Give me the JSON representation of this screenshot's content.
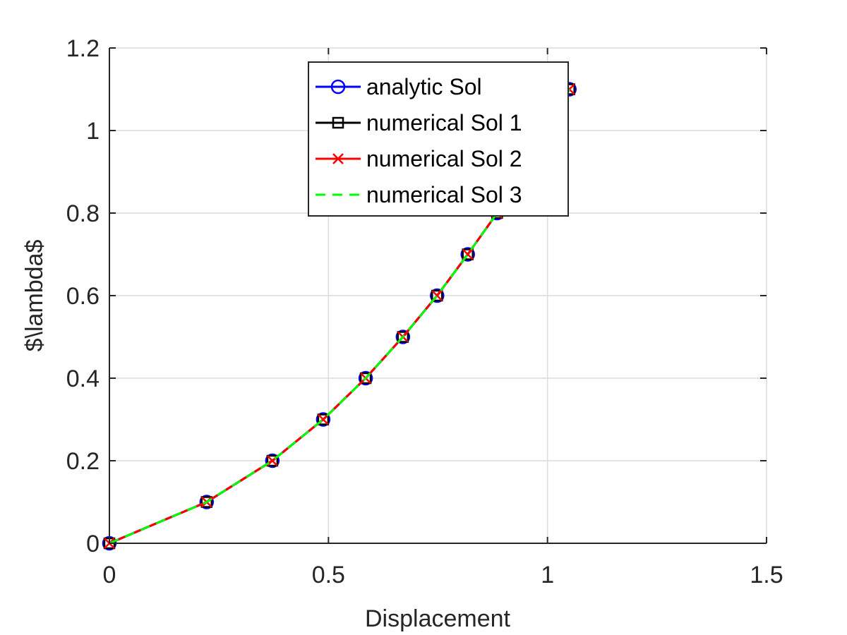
{
  "chart_data": {
    "type": "line",
    "xlabel": "Displacement",
    "ylabel": "$\\lambda$",
    "xlim": [
      0,
      1.5
    ],
    "ylim": [
      0,
      1.2
    ],
    "xticks": [
      "0",
      "0.5",
      "1",
      "1.5"
    ],
    "yticks": [
      "0",
      "0.2",
      "0.4",
      "0.6",
      "0.8",
      "1",
      "1.2"
    ],
    "grid": true,
    "legend_position": "top-center",
    "series": [
      {
        "name": "analytic Sol",
        "color": "#0000ff",
        "marker": "circle",
        "line_style": "solid",
        "x": [
          0,
          0.222,
          0.372,
          0.488,
          0.585,
          0.67,
          0.748,
          0.818,
          0.885,
          1.05
        ],
        "y": [
          0,
          0.1,
          0.2,
          0.3,
          0.4,
          0.5,
          0.6,
          0.7,
          0.8,
          1.1
        ]
      },
      {
        "name": "numerical Sol 1",
        "color": "#000000",
        "marker": "square",
        "line_style": "solid",
        "x": [
          0,
          0.222,
          0.372,
          0.488,
          0.585,
          0.67,
          0.748,
          0.818,
          0.885,
          1.05
        ],
        "y": [
          0,
          0.1,
          0.2,
          0.3,
          0.4,
          0.5,
          0.6,
          0.7,
          0.8,
          1.1
        ]
      },
      {
        "name": "numerical Sol 2",
        "color": "#ff0000",
        "marker": "x",
        "line_style": "solid",
        "x": [
          0,
          0.222,
          0.372,
          0.488,
          0.585,
          0.67,
          0.748,
          0.818,
          0.885,
          1.05
        ],
        "y": [
          0,
          0.1,
          0.2,
          0.3,
          0.4,
          0.5,
          0.6,
          0.7,
          0.8,
          1.1
        ]
      },
      {
        "name": "numerical Sol 3",
        "color": "#00ff00",
        "marker": "none",
        "line_style": "dashed",
        "x": [
          0,
          0.222,
          0.372,
          0.488,
          0.585,
          0.67,
          0.748,
          0.818,
          0.885,
          1.05
        ],
        "y": [
          0,
          0.1,
          0.2,
          0.3,
          0.4,
          0.5,
          0.6,
          0.7,
          0.8,
          1.1
        ]
      }
    ]
  }
}
